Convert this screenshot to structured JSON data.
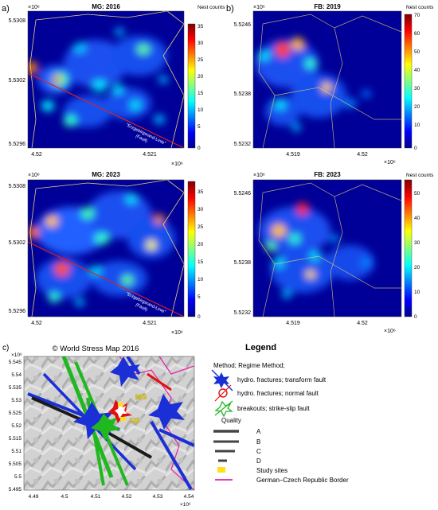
{
  "panels": [
    {
      "id": "mg2016",
      "letter": "a)",
      "title": "MG: 2016",
      "exponent": "×10⁶",
      "x_exponent": "×10⁶",
      "yticks": [
        "5.5308",
        "5.5302",
        "5.5296"
      ],
      "xticks": [
        "4.52",
        "4.521"
      ],
      "colorbar_title": "Nest counts",
      "cbar_ticks": [
        "35",
        "30",
        "25",
        "20",
        "15",
        "10",
        "5",
        "0"
      ],
      "fault_label_1": "\"Erzgebirgsrand-Linie\"",
      "fault_label_2": "(Fault)"
    },
    {
      "id": "fb2019",
      "letter": "b)",
      "title": "FB: 2019",
      "exponent": "×10⁶",
      "x_exponent": "×10⁶",
      "yticks": [
        "5.5246",
        "5.5238",
        "5.5232"
      ],
      "xticks": [
        "4.519",
        "4.52"
      ],
      "colorbar_title": "Nest counts",
      "cbar_ticks": [
        "70",
        "60",
        "50",
        "40",
        "30",
        "20",
        "10",
        "0"
      ]
    },
    {
      "id": "mg2023",
      "letter": "",
      "title": "MG: 2023",
      "exponent": "×10⁶",
      "x_exponent": "×10⁶",
      "yticks": [
        "5.5308",
        "5.5302",
        "5.5296"
      ],
      "xticks": [
        "4.52",
        "4.521"
      ],
      "colorbar_title": "",
      "cbar_ticks": [
        "35",
        "30",
        "25",
        "20",
        "15",
        "10",
        "5",
        "0"
      ],
      "fault_label_1": "\"Erzgebirgsrand-Linie\"",
      "fault_label_2": "(Fault)"
    },
    {
      "id": "fb2023",
      "letter": "",
      "title": "FB: 2023",
      "exponent": "×10⁶",
      "x_exponent": "×10⁶",
      "yticks": [
        "5.5246",
        "5.5238",
        "5.5232"
      ],
      "xticks": [
        "4.519",
        "4.52"
      ],
      "colorbar_title": "Nest counts",
      "cbar_ticks": [
        "50",
        "40",
        "30",
        "20",
        "10",
        "0"
      ]
    }
  ],
  "map": {
    "letter": "c)",
    "title": "© World Stress Map 2016",
    "exponent": "×10⁶",
    "x_exponent": "×10⁶",
    "yticks": [
      "5.545",
      "5.54",
      "5.535",
      "5.53",
      "5.525",
      "5.52",
      "5.515",
      "5.51",
      "5.505",
      "5.5",
      "5.495"
    ],
    "xticks": [
      "4.49",
      "4.5",
      "4.51",
      "4.52",
      "4.53",
      "4.54"
    ],
    "site_labels": [
      "MG",
      "FB"
    ]
  },
  "legend": {
    "title": "Legend",
    "method_header": "Method; Regime Method;",
    "methods": [
      {
        "label": "hydro. fractures; transform fault",
        "color": "#1a2fd6"
      },
      {
        "label": "hydro. fractures; normal fault",
        "color": "#e01010"
      },
      {
        "label": "breakouts; strike-slip fault",
        "color": "#1fb81f"
      }
    ],
    "quality_header": "Quality",
    "qualities": [
      "A",
      "B",
      "C",
      "D"
    ],
    "study_sites": "Study sites",
    "border": "German–Czech Republic Border"
  },
  "colors": {
    "study_site": "#ffe01a",
    "border": "#e81ca8",
    "boundary": "#e8d070",
    "fault": "#e02020"
  },
  "chart_data": [
    {
      "type": "heatmap",
      "title": "MG: 2016",
      "colorbar": "Nest counts",
      "clim": [
        0,
        37
      ],
      "xlim": [
        4.5197,
        4.5214
      ],
      "ylim": [
        5.5294,
        5.5309
      ],
      "x_ticks": [
        4.52,
        4.521
      ],
      "y_ticks": [
        5.5308,
        5.5302,
        5.5296
      ],
      "x_scale": "×10⁶",
      "y_scale": "×10⁶"
    },
    {
      "type": "heatmap",
      "title": "FB: 2019",
      "colorbar": "Nest counts",
      "clim": [
        0,
        70
      ],
      "xlim": [
        4.5183,
        4.5209
      ],
      "ylim": [
        5.5231,
        5.5248
      ],
      "x_ticks": [
        4.519,
        4.52
      ],
      "y_ticks": [
        5.5246,
        5.5238,
        5.5232
      ],
      "x_scale": "×10⁶",
      "y_scale": "×10⁶"
    },
    {
      "type": "heatmap",
      "title": "MG: 2023",
      "clim": [
        0,
        37
      ],
      "xlim": [
        4.5197,
        4.5214
      ],
      "ylim": [
        5.5294,
        5.5309
      ],
      "x_ticks": [
        4.52,
        4.521
      ],
      "y_ticks": [
        5.5308,
        5.5302,
        5.5296
      ],
      "x_scale": "×10⁶",
      "y_scale": "×10⁶"
    },
    {
      "type": "heatmap",
      "title": "FB: 2023",
      "colorbar": "Nest counts",
      "clim": [
        0,
        55
      ],
      "xlim": [
        4.5183,
        4.5209
      ],
      "ylim": [
        5.5231,
        5.5248
      ],
      "x_ticks": [
        4.519,
        4.52
      ],
      "y_ticks": [
        5.5246,
        5.5238,
        5.5232
      ],
      "x_scale": "×10⁶",
      "y_scale": "×10⁶"
    },
    {
      "type": "scatter",
      "title": "© World Stress Map 2016",
      "xlim": [
        4.487,
        4.543
      ],
      "ylim": [
        5.494,
        5.548
      ],
      "x_ticks": [
        4.49,
        4.5,
        4.51,
        4.52,
        4.53,
        4.54
      ],
      "y_ticks": [
        5.545,
        5.54,
        5.535,
        5.53,
        5.525,
        5.52,
        5.515,
        5.51,
        5.505,
        5.5,
        5.495
      ],
      "sites": [
        {
          "name": "MG",
          "x": 4.5205,
          "y": 5.5305
        },
        {
          "name": "FB",
          "x": 4.519,
          "y": 5.5238
        }
      ]
    }
  ]
}
